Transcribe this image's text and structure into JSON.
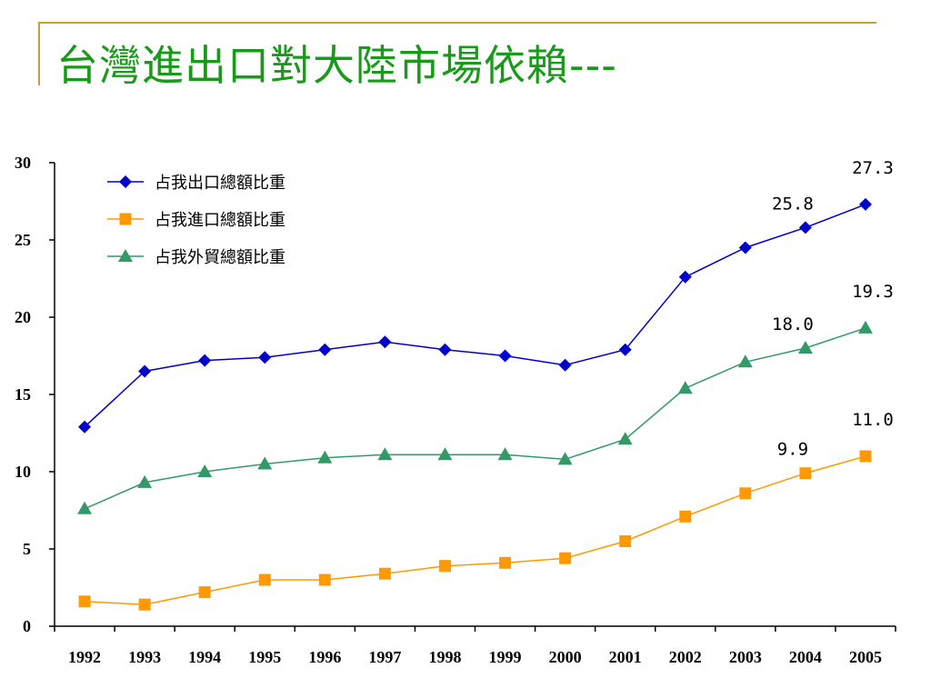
{
  "slide": {
    "title": "台灣進出口對大陸市場依賴---",
    "title_color": "#1a9a1a",
    "rule_color": "#c8a030"
  },
  "chart_data": {
    "type": "line",
    "x": [
      "1992",
      "1993",
      "1994",
      "1995",
      "1996",
      "1997",
      "1998",
      "1999",
      "2000",
      "2001",
      "2002",
      "2003",
      "2004",
      "2005"
    ],
    "ylim": [
      0,
      30
    ],
    "yticks": [
      0,
      5,
      10,
      15,
      20,
      25,
      30
    ],
    "grid": false,
    "legend_position": "top-left",
    "series": [
      {
        "name": "占我出口總額比重",
        "color": "#0000cc",
        "marker": "diamond",
        "values": [
          12.9,
          16.5,
          17.2,
          17.4,
          17.9,
          18.4,
          17.9,
          17.5,
          16.9,
          17.9,
          22.6,
          24.5,
          25.8,
          27.3
        ],
        "labels": [
          null,
          null,
          null,
          null,
          null,
          null,
          null,
          null,
          null,
          null,
          null,
          null,
          "25.8",
          "27.3"
        ]
      },
      {
        "name": "占我進口總額比重",
        "color": "#ff9900",
        "marker": "square",
        "values": [
          1.6,
          1.4,
          2.2,
          3.0,
          3.0,
          3.4,
          3.9,
          4.1,
          4.4,
          5.5,
          7.1,
          8.6,
          9.9,
          11.0
        ],
        "labels": [
          null,
          null,
          null,
          null,
          null,
          null,
          null,
          null,
          null,
          null,
          null,
          null,
          "9.9",
          "11.0"
        ]
      },
      {
        "name": "占我外貿總額比重",
        "color": "#339966",
        "marker": "triangle",
        "values": [
          7.6,
          9.3,
          10.0,
          10.5,
          10.9,
          11.1,
          11.1,
          11.1,
          10.8,
          12.1,
          15.4,
          17.1,
          18.0,
          19.3
        ],
        "labels": [
          null,
          null,
          null,
          null,
          null,
          null,
          null,
          null,
          null,
          null,
          null,
          null,
          "18.0",
          "19.3"
        ]
      }
    ]
  }
}
